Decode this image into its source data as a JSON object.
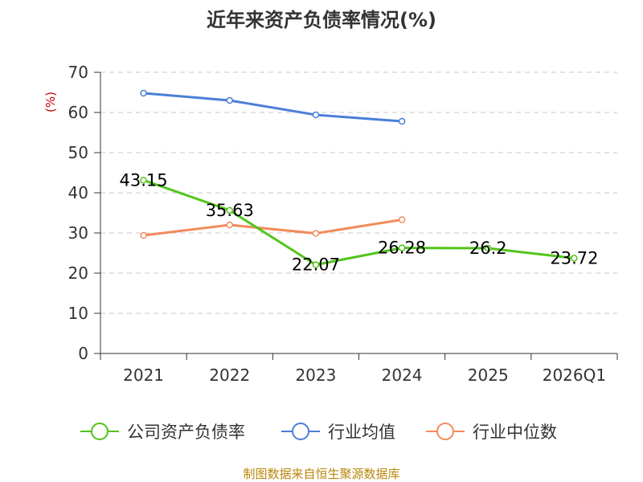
{
  "chart_data": {
    "type": "line",
    "title": "近年来资产负债率情况(%)",
    "ylabel": "(%)",
    "categories": [
      "2021",
      "2022",
      "2023",
      "2024",
      "2025",
      "2026Q1"
    ],
    "ylim": [
      0,
      70
    ],
    "yticks": [
      0,
      10,
      20,
      30,
      40,
      50,
      60,
      70
    ],
    "grid": true,
    "legend_position": "bottom",
    "series": [
      {
        "name": "公司资产负债率",
        "color": "#52c41a",
        "values": [
          43.15,
          35.63,
          22.07,
          26.28,
          26.2,
          23.72
        ],
        "labels": [
          "43.15",
          "35.63",
          "22.07",
          "26.28",
          "26.2",
          "23.72"
        ]
      },
      {
        "name": "行业均值",
        "color": "#4a7fd6",
        "values": [
          64.8,
          63.0,
          59.4,
          57.8,
          null,
          null
        ]
      },
      {
        "name": "行业中位数",
        "color": "#f28b5c",
        "values": [
          29.4,
          32.0,
          29.9,
          33.3,
          null,
          null
        ]
      }
    ]
  },
  "footer": {
    "source": "制图数据来自恒生聚源数据库"
  }
}
